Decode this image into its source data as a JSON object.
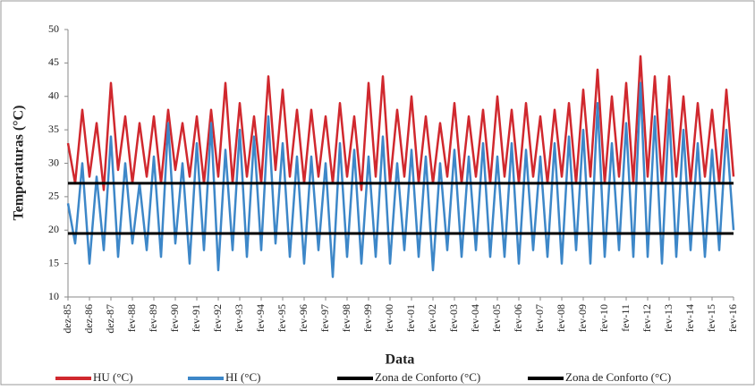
{
  "chart_data": {
    "type": "line",
    "x_label": "Data",
    "y_label": "Temperaturas (°C)",
    "categories": [
      "dez-85",
      null,
      null,
      "dez-86",
      null,
      null,
      "dez-87",
      null,
      null,
      "fev-88",
      null,
      null,
      "fev-89",
      null,
      null,
      "fev-90",
      null,
      null,
      "fev-91",
      null,
      null,
      "fev-92",
      null,
      null,
      "fev-93",
      null,
      null,
      "fev-94",
      null,
      null,
      "fev-95",
      null,
      null,
      "fev-96",
      null,
      null,
      "fev-97",
      null,
      null,
      "fev-98",
      null,
      null,
      "fev-99",
      null,
      null,
      "fev-00",
      null,
      null,
      "fev-01",
      null,
      null,
      "fev-02",
      null,
      null,
      "fev-03",
      null,
      null,
      "fev-04",
      null,
      null,
      "fev-05",
      null,
      null,
      "fev-06",
      null,
      null,
      "fev-07",
      null,
      null,
      "fev-08",
      null,
      null,
      "fev-09",
      null,
      null,
      "fev-10",
      null,
      null,
      "fev-11",
      null,
      null,
      "fev-12",
      null,
      null,
      "fev-13",
      null,
      null,
      "fev-14",
      null,
      null,
      "fev-15",
      null,
      null,
      "fev-16"
    ],
    "series": [
      {
        "name": "HU (°C)",
        "color": "#d0282e",
        "values": [
          33,
          27,
          38,
          28,
          36,
          26,
          42,
          29,
          37,
          27,
          36,
          28,
          37,
          27,
          38,
          29,
          36,
          28,
          37,
          27,
          38,
          28,
          42,
          27,
          39,
          28,
          37,
          27,
          43,
          29,
          41,
          28,
          38,
          27,
          38,
          28,
          37,
          27,
          39,
          28,
          37,
          26,
          42,
          28,
          43,
          27,
          38,
          28,
          40,
          27,
          37,
          27,
          36,
          28,
          39,
          27,
          37,
          28,
          38,
          27,
          40,
          28,
          38,
          27,
          39,
          28,
          37,
          27,
          38,
          28,
          39,
          27,
          41,
          28,
          44,
          27,
          40,
          28,
          42,
          27,
          46,
          28,
          43,
          27,
          43,
          28,
          40,
          27,
          39,
          28,
          38,
          27,
          41,
          28
        ]
      },
      {
        "name": "HI (°C)",
        "color": "#3d87c8",
        "values": [
          24,
          18,
          30,
          15,
          28,
          17,
          34,
          16,
          30,
          18,
          27,
          17,
          31,
          16,
          36,
          18,
          30,
          15,
          33,
          17,
          36,
          14,
          32,
          17,
          35,
          16,
          34,
          17,
          37,
          18,
          33,
          16,
          31,
          15,
          31,
          17,
          30,
          13,
          33,
          16,
          32,
          15,
          31,
          16,
          34,
          15,
          30,
          17,
          32,
          16,
          31,
          14,
          30,
          17,
          32,
          16,
          31,
          17,
          33,
          16,
          31,
          16,
          33,
          15,
          32,
          17,
          31,
          16,
          33,
          15,
          34,
          17,
          35,
          15,
          39,
          16,
          33,
          17,
          36,
          16,
          42,
          16,
          37,
          15,
          38,
          16,
          35,
          17,
          33,
          16,
          32,
          17,
          35,
          20
        ]
      }
    ],
    "reference_lines": [
      {
        "name": "Zona de Conforto (°C)",
        "color": "#000000",
        "value": 27
      },
      {
        "name": "Zona de Conforto (°C)",
        "color": "#000000",
        "value": 19.5
      }
    ],
    "ylim": [
      10,
      50
    ],
    "yticks": [
      10,
      15,
      20,
      25,
      30,
      35,
      40,
      45,
      50
    ],
    "grid": false
  }
}
